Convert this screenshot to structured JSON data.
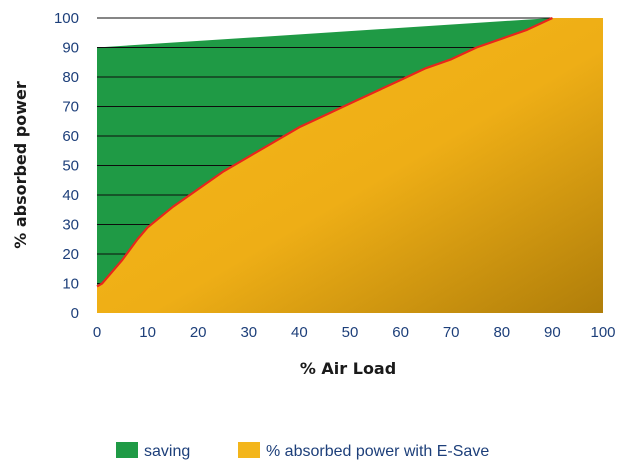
{
  "chart_data": {
    "type": "area",
    "xlabel": "% Air Load",
    "ylabel": "% absorbed power",
    "xlim": [
      0,
      100
    ],
    "ylim": [
      0,
      100
    ],
    "x_ticks": [
      "0",
      "10",
      "20",
      "30",
      "40",
      "50",
      "60",
      "70",
      "80",
      "90",
      "100"
    ],
    "y_ticks": [
      "0",
      "10",
      "20",
      "30",
      "40",
      "50",
      "60",
      "70",
      "80",
      "90",
      "100"
    ],
    "grid": true,
    "legend_position": "bottom",
    "series": [
      {
        "name": "saving",
        "color": "#1f9a45",
        "x": [
          0,
          90
        ],
        "y": [
          90,
          100
        ]
      },
      {
        "name": "% absorbed power with E-Save",
        "color": "#f3b51b",
        "x": [
          0,
          1,
          5,
          8,
          10,
          15,
          20,
          25,
          30,
          35,
          40,
          45,
          50,
          55,
          60,
          65,
          70,
          75,
          80,
          85,
          90,
          100
        ],
        "y": [
          9,
          10,
          18,
          25,
          29,
          36,
          42,
          48,
          53,
          58,
          63,
          67,
          71,
          75,
          79,
          83,
          86,
          90,
          93,
          96,
          100,
          100
        ]
      }
    ],
    "curve_color": "#e8261c"
  }
}
